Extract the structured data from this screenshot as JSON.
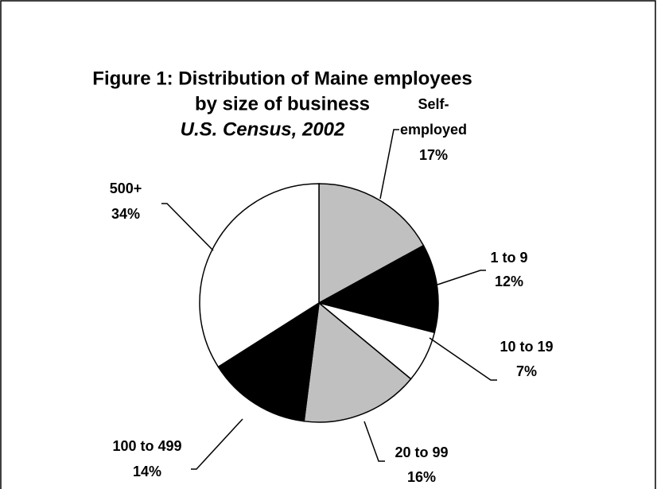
{
  "chart_data": {
    "type": "pie",
    "title": [
      "Figure 1: Distribution of Maine employees",
      "by size of business"
    ],
    "subtitle": "U.S. Census, 2002",
    "categories": [
      "Self-employed",
      "1 to 9",
      "10 to 19",
      "20 to 99",
      "100 to 499",
      "500+"
    ],
    "values": [
      17,
      12,
      7,
      16,
      14,
      34
    ],
    "value_labels": [
      "17%",
      "12%",
      "7%",
      "16%",
      "14%",
      "34%"
    ],
    "colors": [
      "#c0c0c0",
      "#000000",
      "#ffffff",
      "#c0c0c0",
      "#000000",
      "#ffffff"
    ]
  }
}
